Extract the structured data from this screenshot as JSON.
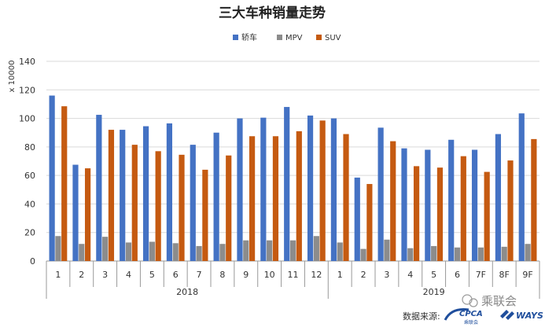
{
  "chart_data": {
    "type": "bar",
    "title": "三大车种销量走势",
    "ylabel": "x 10000",
    "xlabel": "",
    "ylim": [
      0,
      140
    ],
    "yticks": [
      0,
      20,
      40,
      60,
      80,
      100,
      120,
      140
    ],
    "grid": true,
    "legend_position": "top-center",
    "categories": [
      "1",
      "2",
      "3",
      "4",
      "5",
      "6",
      "7",
      "8",
      "9",
      "10",
      "11",
      "12",
      "1",
      "2",
      "3",
      "4",
      "5",
      "6",
      "7F",
      "8F",
      "9F"
    ],
    "groups": [
      {
        "label": "2018",
        "count": 12
      },
      {
        "label": "2019",
        "count": 9
      }
    ],
    "series": [
      {
        "name": "轿车",
        "color": "#4472c4",
        "values": [
          116,
          67.5,
          102.5,
          92,
          94.5,
          96.5,
          81.5,
          90,
          100,
          100.5,
          108,
          102,
          100,
          58.5,
          93.5,
          79,
          78,
          85,
          78,
          89,
          103.5
        ]
      },
      {
        "name": "MPV",
        "color": "#8c8c8c",
        "values": [
          17.5,
          12,
          17,
          13,
          13.5,
          12.5,
          10.5,
          12,
          14.5,
          14.5,
          14.5,
          17.5,
          13,
          8.5,
          15,
          9,
          10.5,
          9.5,
          9.5,
          10,
          12
        ]
      },
      {
        "name": "SUV",
        "color": "#c55a11",
        "values": [
          108.5,
          65,
          92,
          81.5,
          77,
          74.5,
          64,
          74,
          87.5,
          87.5,
          91,
          98.5,
          89,
          54,
          84,
          66.5,
          65.5,
          73.5,
          62.5,
          70.5,
          85.5
        ]
      }
    ]
  },
  "watermark": {
    "source_label": "数据来源:",
    "logo_text": "乘联会",
    "brand1": "CPCA",
    "brand1_sub": "乘联会",
    "brand2": "WAYS"
  }
}
